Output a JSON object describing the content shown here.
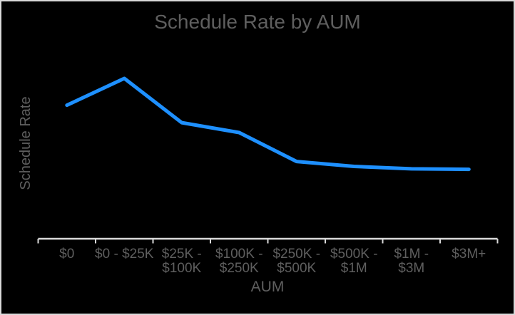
{
  "window": {
    "background": "#000000",
    "border_color": "#d9d9d9"
  },
  "colors": {
    "line": "#1e90ff",
    "text": "#5f5f5f",
    "axis": "#d9d9d9",
    "background": "#000000"
  },
  "chart_data": {
    "type": "line",
    "title": "Schedule Rate by AUM",
    "xlabel": "AUM",
    "ylabel": "Schedule Rate",
    "categories": [
      "$0",
      "$0 - $25K",
      "$25K - $100K",
      "$100K - $250K",
      "$250K - $500K",
      "$500K - $1M",
      "$1M - $3M",
      "$3M+"
    ],
    "series": [
      {
        "name": "Schedule Rate",
        "values": [
          0.833,
          1.0,
          0.724,
          0.662,
          0.482,
          0.451,
          0.436,
          0.433
        ]
      }
    ],
    "y_axis": {
      "tick_labels_visible": false,
      "note": "y-axis has no tick labels or gridlines; values estimated from pixel positions, normalized so the peak at $0 - $25K = 1.0"
    },
    "grid": false,
    "legend": "none"
  }
}
